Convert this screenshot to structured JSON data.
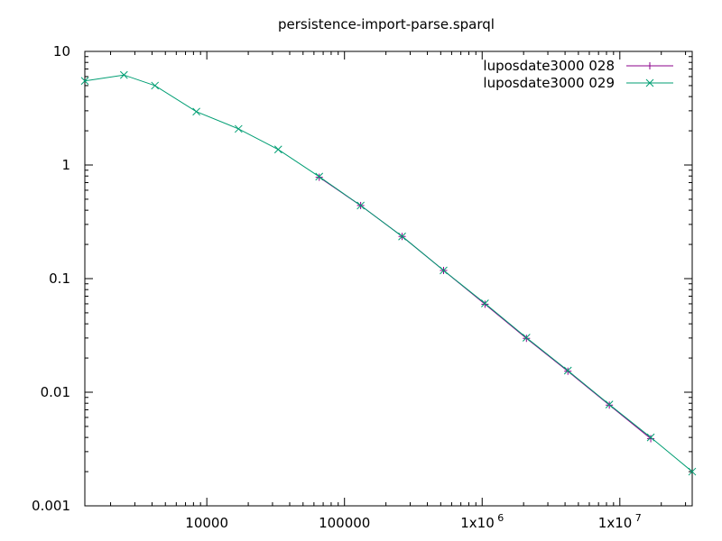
{
  "chart_data": {
    "type": "line",
    "title": "persistence-import-parse.sparql",
    "xlabel": "",
    "ylabel": "",
    "x_scale": "log",
    "y_scale": "log",
    "xlim": [
      1300,
      33554432
    ],
    "ylim": [
      0.001,
      10
    ],
    "grid": false,
    "legend_position": "top-right",
    "x_ticks": [
      {
        "value": 10000,
        "label": "10000"
      },
      {
        "value": 100000,
        "label": "100000"
      },
      {
        "value": 1000000,
        "label": "1x10",
        "sup": "6"
      },
      {
        "value": 10000000,
        "label": "1x10",
        "sup": "7"
      }
    ],
    "y_ticks": [
      {
        "value": 10,
        "label": "10"
      },
      {
        "value": 1,
        "label": "1"
      },
      {
        "value": 0.1,
        "label": "0.1"
      },
      {
        "value": 0.01,
        "label": "0.01"
      },
      {
        "value": 0.001,
        "label": "0.001"
      }
    ],
    "series": [
      {
        "name": "luposdate3000 028",
        "color": "#8b008b",
        "marker": "plus",
        "x": [
          65536,
          131072,
          262144,
          524288,
          1048576,
          2097152,
          4194304,
          8388608,
          16777216
        ],
        "y": [
          0.78,
          0.44,
          0.235,
          0.118,
          0.0595,
          0.0298,
          0.0153,
          0.0077,
          0.0039
        ]
      },
      {
        "name": "luposdate3000 029",
        "color": "#009e73",
        "marker": "cross",
        "x": [
          1300,
          2500,
          4200,
          8400,
          17000,
          33000,
          65536,
          131072,
          262144,
          524288,
          1048576,
          2097152,
          4194304,
          8388608,
          16777216,
          33554432
        ],
        "y": [
          5.5,
          6.2,
          5.0,
          2.95,
          2.08,
          1.37,
          0.79,
          0.44,
          0.235,
          0.118,
          0.0605,
          0.0302,
          0.0155,
          0.0078,
          0.004,
          0.002
        ]
      }
    ]
  }
}
